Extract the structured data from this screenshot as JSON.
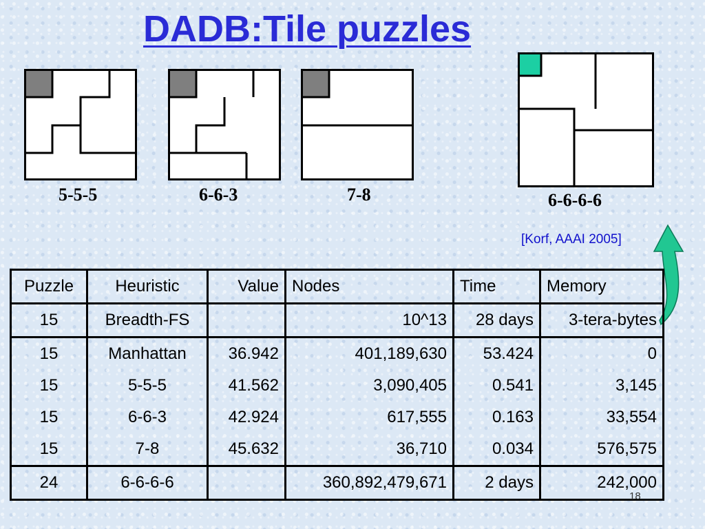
{
  "slide": {
    "title": "DADB:Tile puzzles",
    "citation": "[Korf, AAAI 2005]",
    "page_number": "18"
  },
  "diagrams": [
    {
      "label": "5-5-5"
    },
    {
      "label": "6-6-3"
    },
    {
      "label": "7-8"
    },
    {
      "label": "6-6-6-6"
    }
  ],
  "colors": {
    "title": "#2a2bd6",
    "blank_tile_gray": "#7f7f7f",
    "blank_tile_teal": "#1ccfa3",
    "arrow_green": "#21c792",
    "citation": "#1111cc"
  },
  "table": {
    "headers": [
      "Puzzle",
      "Heuristic",
      "Value",
      "Nodes",
      "Time",
      "Memory"
    ],
    "rows": [
      [
        "15",
        "Breadth-FS",
        "",
        "10^13",
        "28 days",
        "3-tera-bytes"
      ],
      [
        "15",
        "Manhattan",
        "36.942",
        "401,189,630",
        "53.424",
        "0"
      ],
      [
        "15",
        "5-5-5",
        "41.562",
        "3,090,405",
        "0.541",
        "3,145"
      ],
      [
        "15",
        "6-6-3",
        "42.924",
        "617,555",
        "0.163",
        "33,554"
      ],
      [
        "15",
        "7-8",
        "45.632",
        "36,710",
        "0.034",
        "576,575"
      ],
      [
        "24",
        "6-6-6-6",
        "",
        "360,892,479,671",
        "2 days",
        "242,000"
      ]
    ]
  }
}
